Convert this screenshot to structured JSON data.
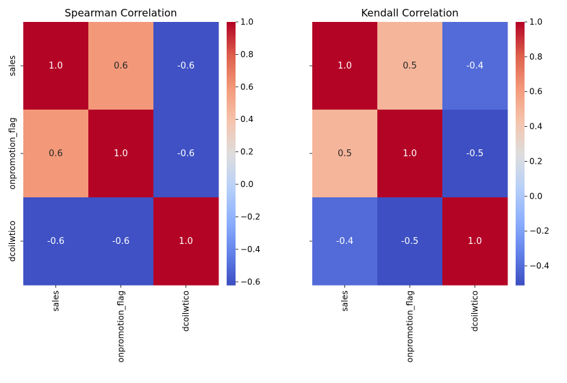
{
  "chart_data": [
    {
      "type": "heatmap",
      "title": "Spearman Correlation",
      "row_labels": [
        "sales",
        "onpromotion_flag",
        "dcoilwtico"
      ],
      "col_labels": [
        "sales",
        "onpromotion_flag",
        "dcoilwtico"
      ],
      "values": [
        [
          1.0,
          0.6,
          -0.6
        ],
        [
          0.6,
          1.0,
          -0.6
        ],
        [
          -0.6,
          -0.6,
          1.0
        ]
      ],
      "annotations": [
        [
          "1.0",
          "0.6",
          "-0.6"
        ],
        [
          "0.6",
          "1.0",
          "-0.6"
        ],
        [
          "-0.6",
          "-0.6",
          "1.0"
        ]
      ],
      "colormap": "coolwarm",
      "vmin": -0.62,
      "vmax": 1.0,
      "colorbar_ticks": [
        -0.6,
        -0.4,
        -0.2,
        0.0,
        0.2,
        0.4,
        0.6,
        0.8,
        1.0
      ],
      "colorbar_tick_labels": [
        "−0.6",
        "−0.4",
        "−0.2",
        "0.0",
        "0.2",
        "0.4",
        "0.6",
        "0.8",
        "1.0"
      ]
    },
    {
      "type": "heatmap",
      "title": "Kendall Correlation",
      "row_labels": [
        "",
        "",
        ""
      ],
      "col_labels": [
        "sales",
        "onpromotion_flag",
        "dcoilwtico"
      ],
      "values": [
        [
          1.0,
          0.5,
          -0.4
        ],
        [
          0.5,
          1.0,
          -0.5
        ],
        [
          -0.4,
          -0.5,
          1.0
        ]
      ],
      "annotations": [
        [
          "1.0",
          "0.5",
          "-0.4"
        ],
        [
          "0.5",
          "1.0",
          "-0.5"
        ],
        [
          "-0.4",
          "-0.5",
          "1.0"
        ]
      ],
      "colormap": "coolwarm",
      "vmin": -0.51,
      "vmax": 1.0,
      "colorbar_ticks": [
        -0.4,
        -0.2,
        0.0,
        0.2,
        0.4,
        0.6,
        0.8,
        1.0
      ],
      "colorbar_tick_labels": [
        "−0.4",
        "−0.2",
        "0.0",
        "0.2",
        "0.4",
        "0.6",
        "0.8",
        "1.0"
      ]
    }
  ]
}
